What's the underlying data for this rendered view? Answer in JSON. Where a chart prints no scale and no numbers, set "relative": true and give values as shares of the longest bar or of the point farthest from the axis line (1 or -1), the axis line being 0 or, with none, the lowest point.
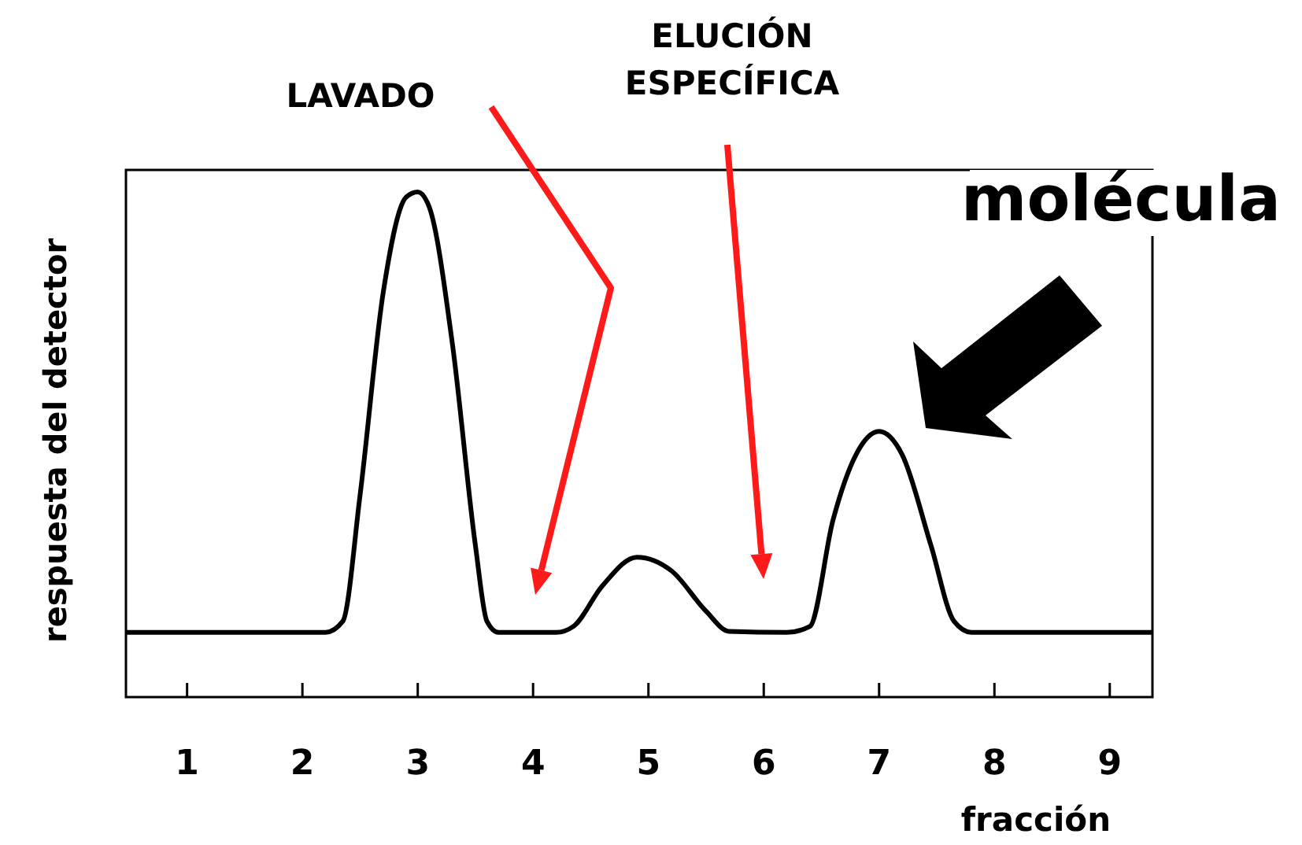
{
  "chart_data": {
    "type": "line",
    "relative": true,
    "xlabel": "fracción",
    "ylabel": "respuesta del detector",
    "xlim": [
      0.47,
      9.37
    ],
    "xticks": [
      1,
      2,
      3,
      4,
      5,
      6,
      7,
      8,
      9
    ],
    "color": "#000000",
    "grid": false,
    "marker": "none",
    "line_style": "solid",
    "x": [
      0.47,
      2.2,
      2.35,
      2.5,
      2.7,
      2.9,
      3.0,
      3.1,
      3.3,
      3.5,
      3.6,
      3.7,
      4.2,
      4.35,
      4.6,
      4.9,
      5.2,
      5.5,
      5.7,
      6.2,
      6.4,
      6.6,
      6.8,
      7.0,
      7.2,
      7.45,
      7.65,
      7.8,
      9.37
    ],
    "values": [
      0.128,
      0.128,
      0.15,
      0.4,
      0.8,
      0.99,
      1.0,
      0.97,
      0.7,
      0.3,
      0.15,
      0.128,
      0.128,
      0.14,
      0.22,
      0.277,
      0.25,
      0.17,
      0.13,
      0.128,
      0.14,
      0.35,
      0.48,
      0.526,
      0.48,
      0.3,
      0.15,
      0.128,
      0.128
    ],
    "annotations": [
      "LAVADO",
      "ELUCIÓN ESPECÍFICA",
      "molécula"
    ]
  }
}
